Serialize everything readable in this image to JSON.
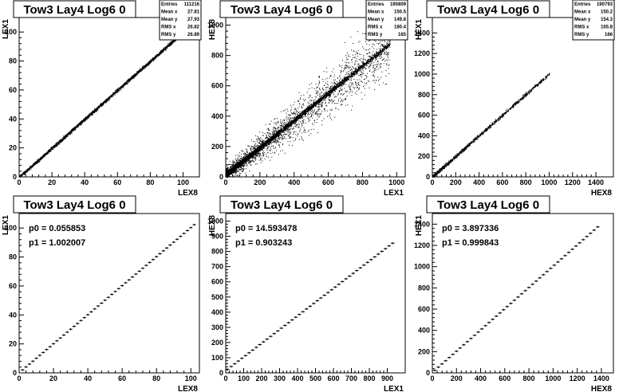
{
  "chart_data": [
    {
      "type": "scatter",
      "title": "Tow3 Lay4 Log6 0",
      "xlabel": "LEX8",
      "ylabel": "LEX1",
      "xlim": [
        0,
        110
      ],
      "ylim": [
        0,
        110
      ],
      "xticks": [
        "0",
        "20",
        "40",
        "60",
        "80",
        "100"
      ],
      "xtickvals": [
        0,
        20,
        40,
        60,
        80,
        100
      ],
      "yticks": [
        "0",
        "20",
        "40",
        "60",
        "80",
        "100"
      ],
      "ytickvals": [
        0,
        20,
        40,
        60,
        80,
        100
      ],
      "stats": [
        {
          "k": "Entries",
          "v": "111216"
        },
        {
          "k": "Mean x",
          "v": "27.81"
        },
        {
          "k": "Mean y",
          "v": "27.93"
        },
        {
          "k": "RMS x",
          "v": "26.82"
        },
        {
          "k": "RMS y",
          "v": "26.89"
        }
      ],
      "style": "line-dense",
      "band": {
        "slope": 1.0,
        "intercept": 0.0,
        "xmax": 101
      }
    },
    {
      "type": "scatter",
      "title": "Tow3 Lay4 Log6 0",
      "xlabel": "LEX1",
      "ylabel": "HEX8",
      "xlim": [
        0,
        1050
      ],
      "ylim": [
        0,
        1050
      ],
      "xticks": [
        "0",
        "200",
        "400",
        "600",
        "800",
        "1000"
      ],
      "xtickvals": [
        0,
        200,
        400,
        600,
        800,
        1000
      ],
      "yticks": [
        "0",
        "200",
        "400",
        "600",
        "800",
        "1000"
      ],
      "ytickvals": [
        0,
        200,
        400,
        600,
        800,
        1000
      ],
      "stats": [
        {
          "k": "Entries",
          "v": "190809"
        },
        {
          "k": "Mean x",
          "v": "150.5"
        },
        {
          "k": "Mean y",
          "v": "149.8"
        },
        {
          "k": "RMS x",
          "v": "180.4"
        },
        {
          "k": "RMS y",
          "v": "165"
        }
      ],
      "style": "cloud",
      "band": {
        "slope": 0.9,
        "intercept": 14.6,
        "xmax": 960
      }
    },
    {
      "type": "scatter",
      "title": "Tow3 Lay4 Log6 0",
      "xlabel": "HEX8",
      "ylabel": "HEX1",
      "xlim": [
        0,
        1550
      ],
      "ylim": [
        0,
        1550
      ],
      "xticks": [
        "0",
        "200",
        "400",
        "600",
        "800",
        "1000",
        "1200",
        "1400"
      ],
      "xtickvals": [
        0,
        200,
        400,
        600,
        800,
        1000,
        1200,
        1400
      ],
      "yticks": [
        "0",
        "200",
        "400",
        "600",
        "800",
        "1000",
        "1200",
        "1400"
      ],
      "ytickvals": [
        0,
        200,
        400,
        600,
        800,
        1000,
        1200,
        1400
      ],
      "stats": [
        {
          "k": "Entries",
          "v": "190793"
        },
        {
          "k": "Mean x",
          "v": "150.2"
        },
        {
          "k": "Mean y",
          "v": "154.3"
        },
        {
          "k": "RMS x",
          "v": "165.8"
        },
        {
          "k": "RMS y",
          "v": "166"
        }
      ],
      "style": "line-sparse",
      "band": {
        "slope": 1.0,
        "intercept": 3.9,
        "xmax": 1000
      }
    },
    {
      "type": "line",
      "title": "Tow3 Lay4 Log6 0",
      "xlabel": "LEX8",
      "ylabel": "LEX1",
      "xlim": [
        0,
        105
      ],
      "ylim": [
        0,
        110
      ],
      "xticks": [
        "0",
        "20",
        "40",
        "60",
        "80",
        "100"
      ],
      "xtickvals": [
        0,
        20,
        40,
        60,
        80,
        100
      ],
      "yticks": [
        "0",
        "20",
        "40",
        "60",
        "80",
        "100"
      ],
      "ytickvals": [
        0,
        20,
        40,
        60,
        80,
        100
      ],
      "fit": {
        "p0": "p0 = 0.055853",
        "p1": "p1 = 1.002007",
        "p0v": 0.055853,
        "p1v": 1.002007
      },
      "profile": {
        "xmin": 2,
        "xmax": 102,
        "step": 2
      }
    },
    {
      "type": "line",
      "title": "Tow3 Lay4 Log6 0",
      "xlabel": "LEX1",
      "ylabel": "HEX8",
      "xlim": [
        0,
        1000
      ],
      "ylim": [
        0,
        1050
      ],
      "xticks": [
        "0",
        "100",
        "200",
        "300",
        "400",
        "500",
        "600",
        "700",
        "800",
        "900"
      ],
      "xtickvals": [
        0,
        100,
        200,
        300,
        400,
        500,
        600,
        700,
        800,
        900
      ],
      "yticks": [
        "0",
        "100",
        "200",
        "300",
        "400",
        "500",
        "600",
        "700",
        "800",
        "900",
        "1000"
      ],
      "ytickvals": [
        0,
        100,
        200,
        300,
        400,
        500,
        600,
        700,
        800,
        900,
        1000
      ],
      "fit": {
        "p0": "p0 = 14.593478",
        "p1": "p1 = 0.903243",
        "p0v": 14.593478,
        "p1v": 0.903243
      },
      "profile": {
        "xmin": 10,
        "xmax": 940,
        "step": 20
      }
    },
    {
      "type": "line",
      "title": "Tow3 Lay4 Log6 0",
      "xlabel": "HEX8",
      "ylabel": "HEX1",
      "xlim": [
        0,
        1500
      ],
      "ylim": [
        0,
        1500
      ],
      "xticks": [
        "0",
        "200",
        "400",
        "600",
        "800",
        "1000",
        "1200",
        "1400"
      ],
      "xtickvals": [
        0,
        200,
        400,
        600,
        800,
        1000,
        1200,
        1400
      ],
      "yticks": [
        "0",
        "200",
        "400",
        "600",
        "800",
        "1000",
        "1200",
        "1400"
      ],
      "ytickvals": [
        0,
        200,
        400,
        600,
        800,
        1000,
        1200,
        1400
      ],
      "fit": {
        "p0": "p0 = 3.897336",
        "p1": "p1 = 0.999843",
        "p0v": 3.897336,
        "p1v": 0.999843
      },
      "profile": {
        "xmin": 20,
        "xmax": 1390,
        "step": 30
      }
    }
  ]
}
